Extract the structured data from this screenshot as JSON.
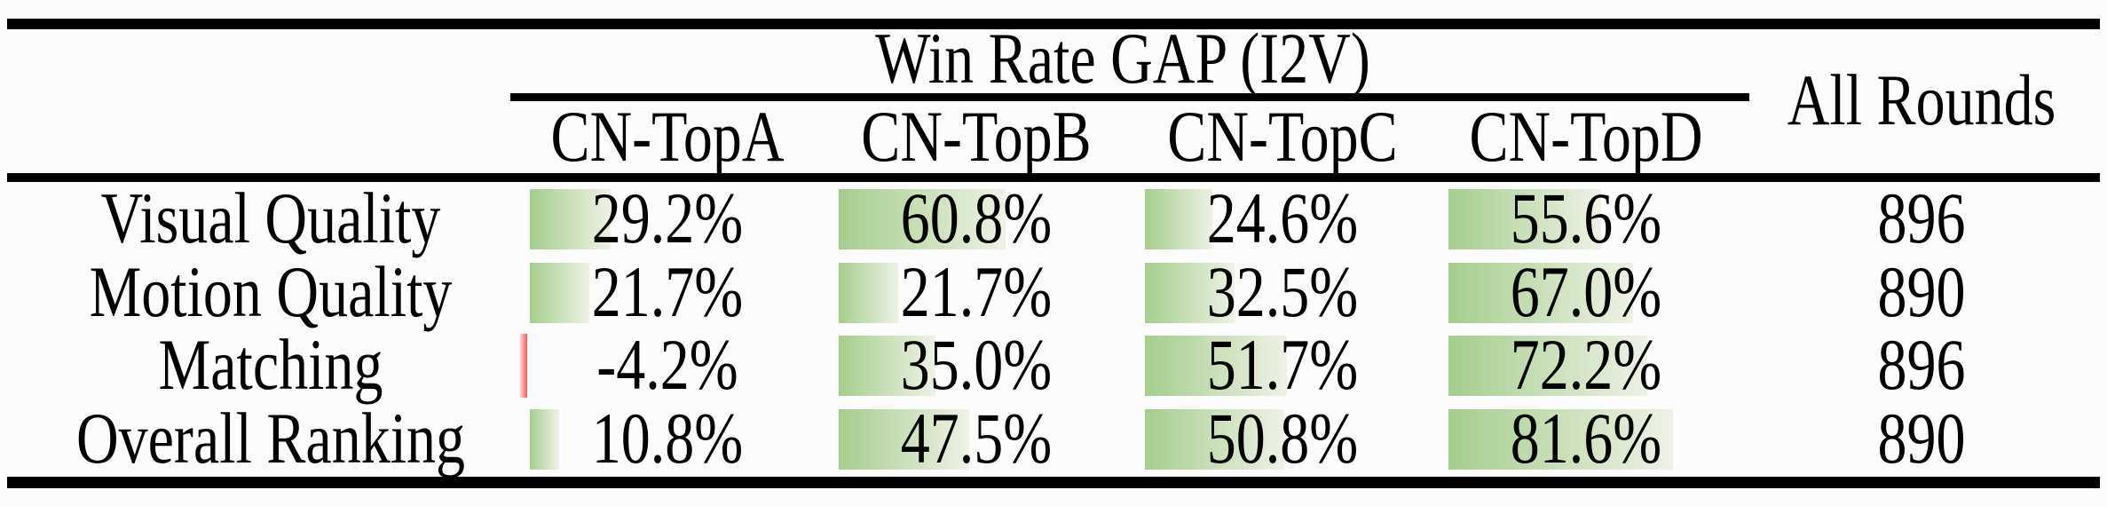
{
  "table": {
    "group_header": "Win Rate GAP (I2V)",
    "all_rounds_header": "All Rounds",
    "columns": [
      "CN-TopA",
      "CN-TopB",
      "CN-TopC",
      "CN-TopD"
    ],
    "rows": [
      {
        "label": "Visual Quality",
        "cells": [
          {
            "value": 29.2,
            "text": "29.2%"
          },
          {
            "value": 60.8,
            "text": "60.8%"
          },
          {
            "value": 24.6,
            "text": "24.6%"
          },
          {
            "value": 55.6,
            "text": "55.6%"
          }
        ],
        "all_rounds": "896"
      },
      {
        "label": "Motion Quality",
        "cells": [
          {
            "value": 21.7,
            "text": "21.7%"
          },
          {
            "value": 21.7,
            "text": "21.7%"
          },
          {
            "value": 32.5,
            "text": "32.5%"
          },
          {
            "value": 67.0,
            "text": "67.0%"
          }
        ],
        "all_rounds": "890"
      },
      {
        "label": "Matching",
        "cells": [
          {
            "value": -4.2,
            "text": "-4.2%"
          },
          {
            "value": 35.0,
            "text": "35.0%"
          },
          {
            "value": 51.7,
            "text": "51.7%"
          },
          {
            "value": 72.2,
            "text": "72.2%"
          }
        ],
        "all_rounds": "896"
      },
      {
        "label": "Overall Ranking",
        "cells": [
          {
            "value": 10.8,
            "text": "10.8%"
          },
          {
            "value": 47.5,
            "text": "47.5%"
          },
          {
            "value": 50.8,
            "text": "50.8%"
          },
          {
            "value": 81.6,
            "text": "81.6%"
          }
        ],
        "all_rounds": "890"
      }
    ]
  },
  "chart_data": {
    "type": "table",
    "title": "Win Rate GAP (I2V)",
    "columns": [
      "CN-TopA",
      "CN-TopB",
      "CN-TopC",
      "CN-TopD",
      "All Rounds"
    ],
    "row_labels": [
      "Visual Quality",
      "Motion Quality",
      "Matching",
      "Overall Ranking"
    ],
    "win_rate_gap_percent": [
      [
        29.2,
        60.8,
        24.6,
        55.6
      ],
      [
        21.7,
        21.7,
        32.5,
        67.0
      ],
      [
        -4.2,
        35.0,
        51.7,
        72.2
      ],
      [
        10.8,
        47.5,
        50.8,
        81.6
      ]
    ],
    "all_rounds": [
      896,
      890,
      896,
      890
    ],
    "bar_style": "in-cell data bars, length proportional to percent (100% = full cell), green gradient for positive, red for negative"
  },
  "colors": {
    "background": "#fcfcfc",
    "rule": "#000000",
    "text": "#000000",
    "bar_green_start": "#a5cd8d",
    "bar_green_end": "#eef2e6",
    "bar_negative": "#f4575c"
  }
}
